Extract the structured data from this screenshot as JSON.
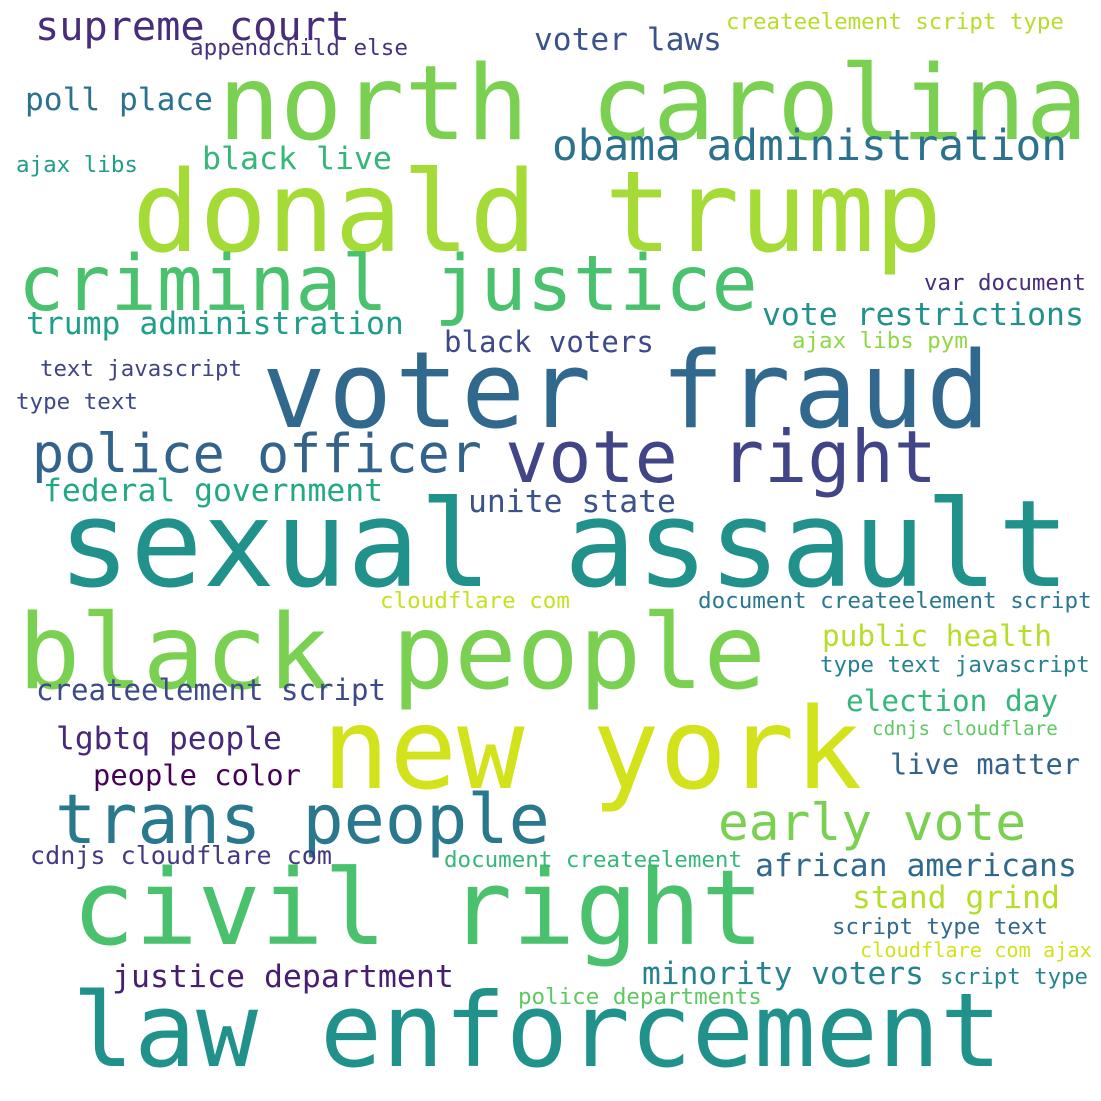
{
  "words": [
    {
      "text": "north carolina",
      "color": "#7ad151"
    },
    {
      "text": "donald trump",
      "color": "#a5db36"
    },
    {
      "text": "criminal justice",
      "color": "#4ac16d"
    },
    {
      "text": "voter fraud",
      "color": "#31688e"
    },
    {
      "text": "vote right",
      "color": "#414487"
    },
    {
      "text": "police officer",
      "color": "#33638d"
    },
    {
      "text": "sexual assault",
      "color": "#21918c"
    },
    {
      "text": "black people",
      "color": "#7ad151"
    },
    {
      "text": "new york",
      "color": "#d2e21b"
    },
    {
      "text": "trans people",
      "color": "#2a788e"
    },
    {
      "text": "civil right",
      "color": "#4ac16d"
    },
    {
      "text": "law enforcement",
      "color": "#21918c"
    },
    {
      "text": "early vote",
      "color": "#7ad151"
    },
    {
      "text": "supreme court",
      "color": "#472d7b"
    },
    {
      "text": "obama administration",
      "color": "#2c728e"
    },
    {
      "text": "voter laws",
      "color": "#3b528b"
    },
    {
      "text": "poll place",
      "color": "#2c728e"
    },
    {
      "text": "black live",
      "color": "#35b779"
    },
    {
      "text": "vote restrictions",
      "color": "#21918c"
    },
    {
      "text": "trump administration",
      "color": "#1f9e89"
    },
    {
      "text": "black voters",
      "color": "#3e4989"
    },
    {
      "text": "federal government",
      "color": "#22a884"
    },
    {
      "text": "unite state",
      "color": "#3b528b"
    },
    {
      "text": "public health",
      "color": "#b5de2b"
    },
    {
      "text": "createelement script",
      "color": "#3e4989"
    },
    {
      "text": "election day",
      "color": "#35b779"
    },
    {
      "text": "lgbtq people",
      "color": "#482878"
    },
    {
      "text": "people color",
      "color": "#440154"
    },
    {
      "text": "live matter",
      "color": "#33638d"
    },
    {
      "text": "african americans",
      "color": "#31688e"
    },
    {
      "text": "stand grind",
      "color": "#b5de2b"
    },
    {
      "text": "justice department",
      "color": "#481f70"
    },
    {
      "text": "minority voters",
      "color": "#26828e"
    },
    {
      "text": "createelement script type",
      "color": "#b5de2b"
    },
    {
      "text": "appendchild else",
      "color": "#46327e"
    },
    {
      "text": "ajax libs",
      "color": "#1f9e89"
    },
    {
      "text": "var document",
      "color": "#472d7b"
    },
    {
      "text": "ajax libs pym",
      "color": "#8fd744"
    },
    {
      "text": "text javascript",
      "color": "#414487"
    },
    {
      "text": "type text",
      "color": "#3e4989"
    },
    {
      "text": "cloudflare com",
      "color": "#c8e020"
    },
    {
      "text": "document createelement script",
      "color": "#2a788e"
    },
    {
      "text": "type text javascript",
      "color": "#26828e"
    },
    {
      "text": "cdnjs cloudflare",
      "color": "#5ec962"
    },
    {
      "text": "cdnjs cloudflare com",
      "color": "#443a83"
    },
    {
      "text": "document createelement",
      "color": "#35b779"
    },
    {
      "text": "script type text",
      "color": "#31688e"
    },
    {
      "text": "cloudflare com ajax",
      "color": "#d2e21b"
    },
    {
      "text": "script type",
      "color": "#25858e"
    },
    {
      "text": "police departments",
      "color": "#5ec962"
    }
  ]
}
